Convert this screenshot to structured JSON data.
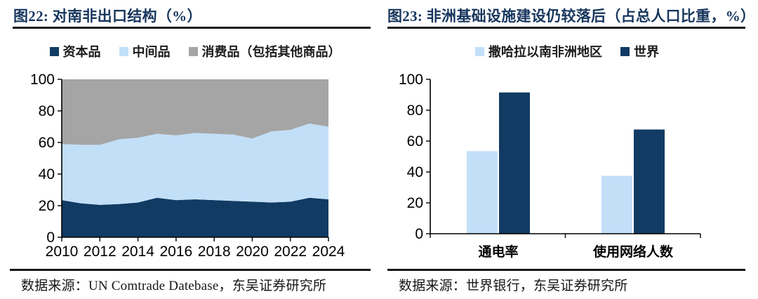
{
  "colors": {
    "navy": "#113b63",
    "light_blue": "#c2dff8",
    "gray": "#a5a5a5",
    "title_navy": "#17365d",
    "axis_black": "#000000",
    "text_black": "#1c1c1c"
  },
  "left_panel": {
    "title": "图22:  对南非出口结构（%）",
    "legend": [
      {
        "label": "资本品",
        "color": "#113b63"
      },
      {
        "label": "中间品",
        "color": "#c2dff8"
      },
      {
        "label": "消费品（包括其他商品）",
        "color": "#a5a5a5"
      }
    ],
    "source": "数据来源：UN Comtrade Datebase，东吴证券研究所"
  },
  "right_panel": {
    "title": "图23:  非洲基础设施建设仍较落后（占总人口比重，%）",
    "legend": [
      {
        "label": "撒哈拉以南非洲地区",
        "color": "#c2dff8"
      },
      {
        "label": "世界",
        "color": "#113b63"
      }
    ],
    "source": "数据来源：世界银行，东吴证券研究所"
  },
  "chart_data": [
    {
      "type": "area",
      "stacked": true,
      "title": "对南非出口结构（%）",
      "x": [
        2010,
        2011,
        2012,
        2013,
        2014,
        2015,
        2016,
        2017,
        2018,
        2019,
        2020,
        2021,
        2022,
        2023,
        2024
      ],
      "series": [
        {
          "name": "资本品",
          "color": "#113b63",
          "values": [
            23.5,
            21.5,
            20.5,
            21,
            22,
            25,
            23.5,
            24,
            23.5,
            23,
            22.5,
            22,
            22.5,
            25,
            24
          ]
        },
        {
          "name": "中间品",
          "color": "#c2dff8",
          "values": [
            35.5,
            37,
            38,
            41,
            41,
            40.5,
            41,
            42,
            42,
            42,
            40,
            45,
            45.5,
            47,
            46
          ]
        },
        {
          "name": "消费品（包括其他商品）",
          "color": "#a5a5a5",
          "values": [
            41,
            41.5,
            41.5,
            38,
            37,
            34.5,
            35.5,
            34,
            34.5,
            35,
            37.5,
            33,
            32,
            28,
            30
          ]
        }
      ],
      "ylim": [
        0,
        100
      ],
      "yticks": [
        0,
        20,
        40,
        60,
        80,
        100
      ],
      "xticks": [
        2010,
        2012,
        2014,
        2016,
        2018,
        2020,
        2022,
        2024
      ],
      "grid": false,
      "legend_position": "top"
    },
    {
      "type": "bar",
      "title": "非洲基础设施建设仍较落后（占总人口比重，%）",
      "categories": [
        "通电率",
        "使用网络人数"
      ],
      "series": [
        {
          "name": "撒哈拉以南非洲地区",
          "color": "#c2dff8",
          "values": [
            53.5,
            37.5
          ]
        },
        {
          "name": "世界",
          "color": "#113b63",
          "values": [
            91.5,
            67.5
          ]
        }
      ],
      "ylim": [
        0,
        100
      ],
      "yticks": [
        0,
        20,
        40,
        60,
        80,
        100
      ],
      "grid": false,
      "legend_position": "top"
    }
  ]
}
